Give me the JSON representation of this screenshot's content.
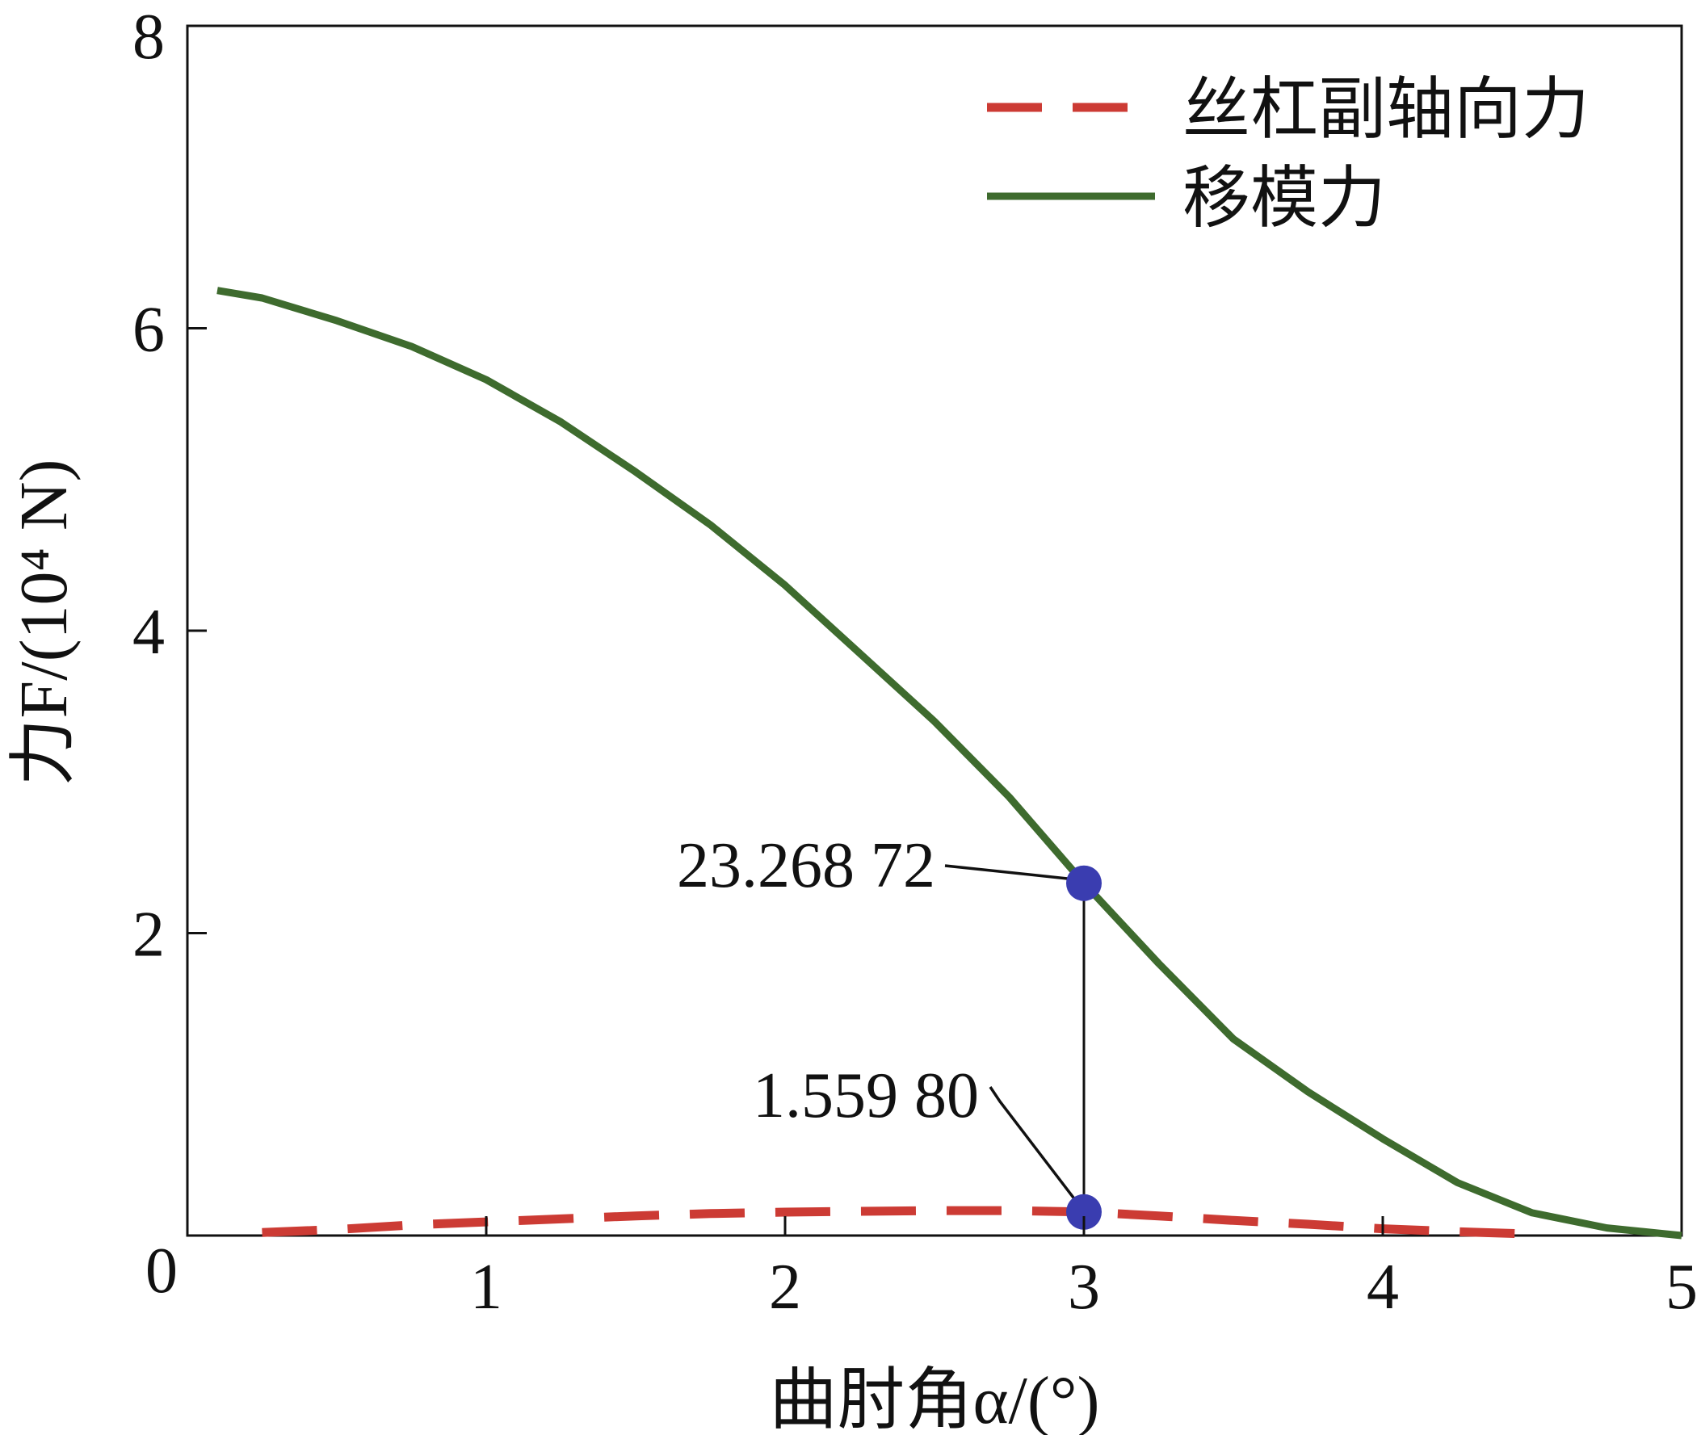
{
  "chart_data": {
    "type": "line",
    "xlabel": "曲肘角α/(°)",
    "ylabel": "力F/(10⁴ N)",
    "xlim": [
      0,
      5
    ],
    "ylim": [
      0,
      8
    ],
    "x_ticks": [
      "0",
      "1",
      "2",
      "3",
      "4",
      "5"
    ],
    "y_ticks": [
      "2",
      "4",
      "6",
      "8"
    ],
    "grid": false,
    "legend_position": "top-right",
    "series": [
      {
        "name": "丝杠副轴向力",
        "style": "dashed",
        "color": "#cc3b34",
        "x": [
          0.25,
          0.5,
          0.75,
          1.0,
          1.25,
          1.5,
          1.75,
          2.0,
          2.25,
          2.5,
          2.75,
          3.0,
          3.25,
          3.5,
          3.75,
          4.0,
          4.25,
          4.5
        ],
        "y": [
          0.02,
          0.04,
          0.07,
          0.09,
          0.11,
          0.13,
          0.145,
          0.155,
          0.16,
          0.165,
          0.165,
          0.156,
          0.13,
          0.1,
          0.075,
          0.045,
          0.025,
          0.01
        ]
      },
      {
        "name": "移模力",
        "style": "solid",
        "color": "#3e6b2e",
        "x": [
          0.1,
          0.25,
          0.5,
          0.75,
          1.0,
          1.25,
          1.5,
          1.75,
          2.0,
          2.25,
          2.5,
          2.75,
          3.0,
          3.25,
          3.5,
          3.75,
          4.0,
          4.25,
          4.5,
          4.75,
          5.0
        ],
        "y": [
          6.25,
          6.2,
          6.05,
          5.88,
          5.66,
          5.38,
          5.05,
          4.7,
          4.3,
          3.85,
          3.4,
          2.9,
          2.33,
          1.8,
          1.3,
          0.95,
          0.64,
          0.35,
          0.15,
          0.05,
          0.0
        ]
      }
    ],
    "annotations": [
      {
        "text": "23.268 72",
        "x": 3.0,
        "y": 2.33,
        "series": "移模力"
      },
      {
        "text": "1.559 80",
        "x": 3.0,
        "y": 0.156,
        "series": "丝杠副轴向力"
      }
    ],
    "marker_color": "#3a3db0"
  }
}
